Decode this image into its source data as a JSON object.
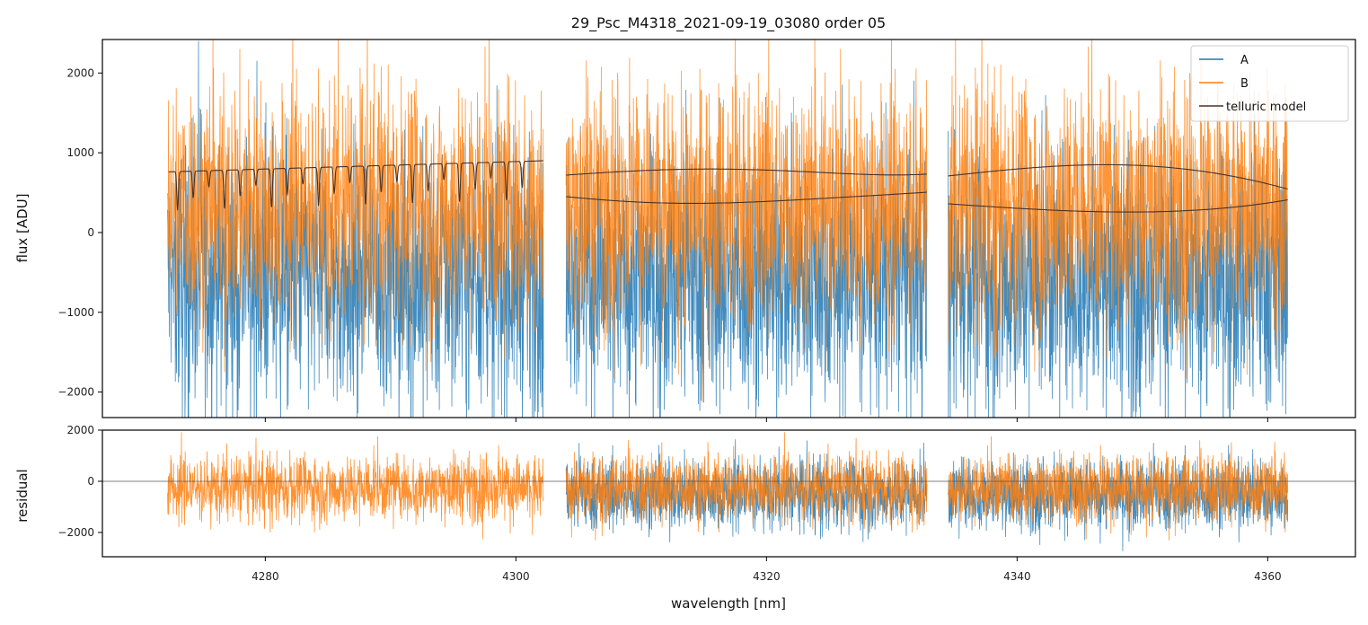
{
  "chart_data": [
    {
      "type": "line",
      "panel": "top",
      "title": "29_Psc_M4318_2021-09-19_03080  order 05",
      "xlabel": "",
      "ylabel": "flux [ADU]",
      "xlim": [
        4267,
        4367
      ],
      "ylim": [
        -2320,
        2420
      ],
      "yticks": [
        -2000,
        -1000,
        0,
        1000,
        2000
      ],
      "ytick_labels": [
        "−2000",
        "−1000",
        "0",
        "1000",
        "2000"
      ],
      "xticks": [
        4280,
        4300,
        4320,
        4340,
        4360
      ],
      "segments": [
        [
          4272.2,
          4302.2
        ],
        [
          4304.0,
          4332.8
        ],
        [
          4334.5,
          4361.6
        ]
      ],
      "series": [
        {
          "name": "A",
          "color": "#1f77b4",
          "kind": "noisy flux",
          "approx_center": -500,
          "approx_spread": 2400
        },
        {
          "name": "B",
          "color": "#ff7f0e",
          "kind": "noisy flux",
          "approx_center": 300,
          "approx_spread": 2400
        },
        {
          "name": "telluric model",
          "color": "#4a3328",
          "upper_curve": {
            "seg1": [
              760,
              900
            ],
            "seg2": [
              720,
              800,
              660,
              760
            ],
            "seg3": [
              710,
              860,
              580
            ]
          },
          "lower_curve": {
            "seg2": [
              450,
              250,
              470
            ],
            "seg3": [
              360,
              200,
              410
            ]
          }
        }
      ],
      "legend": {
        "position": "top-right",
        "entries": [
          "A",
          "B",
          "telluric model"
        ]
      }
    },
    {
      "type": "line",
      "panel": "bottom",
      "xlabel": "wavelength [nm]",
      "ylabel": "residual",
      "xlim": [
        4267,
        4367
      ],
      "ylim": [
        -2950,
        2000
      ],
      "yticks": [
        -2000,
        0,
        2000
      ],
      "ytick_labels": [
        "−2000",
        "0",
        "2000"
      ],
      "xticks": [
        4280,
        4300,
        4320,
        4340,
        4360
      ],
      "xtick_labels": [
        "4280",
        "4300",
        "4320",
        "4340",
        "4360"
      ],
      "series": [
        {
          "name": "A",
          "color": "#1f77b4"
        },
        {
          "name": "B",
          "color": "#ff7f0e"
        }
      ],
      "zero_line": 0
    }
  ],
  "legend_labels": {
    "a": "A",
    "b": "B",
    "telluric": "telluric model"
  }
}
